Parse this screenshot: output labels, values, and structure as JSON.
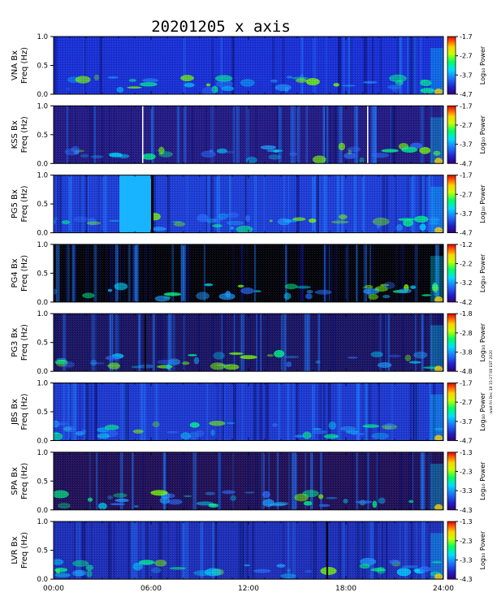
{
  "title": "20201205 x axis",
  "timestamp": "wait Fri Dec 18 15:27:08 EST 2020",
  "chart_data": {
    "type": "heatmap",
    "title": "20201205 x axis",
    "x_ticks": [
      "00:00",
      "06:00",
      "12:00",
      "18:00",
      "24:00"
    ],
    "x_range_hours": [
      0,
      24
    ],
    "y_label": "Freq (Hz)",
    "y_range": [
      0.0,
      1.0
    ],
    "y_ticks": [
      "0.0",
      "0.5",
      "1.0"
    ],
    "colorbar_label": "Log₁₀ Power",
    "colormap": [
      "#000000",
      "#30007a",
      "#1f1fd8",
      "#1e78ff",
      "#00dcff",
      "#00ff64",
      "#c8ff00",
      "#ffd200",
      "#ff5a00",
      "#dc0000"
    ],
    "panels": [
      {
        "station": "VNA Bx",
        "ylabel": "VNA Bx",
        "cb_ticks": [
          "-1.7",
          "-2.7",
          "-3.7",
          "-4.7"
        ],
        "bg": "#1a2fd6",
        "vband_count": 30
      },
      {
        "station": "KSS Bx",
        "ylabel": "KSS Bx",
        "cb_ticks": [
          "-1.7",
          "-2.7",
          "-3.7",
          "-4.7"
        ],
        "bg": "#241a82",
        "white_lines_h": [
          5.45,
          19.3
        ]
      },
      {
        "station": "PG5 Bx",
        "ylabel": "PG5 Bx",
        "cb_ticks": [
          "-1.7",
          "-2.7",
          "-3.7",
          "-4.7"
        ],
        "bg": "#1f3dd6",
        "gap_h": [
          4.05,
          6.0
        ]
      },
      {
        "station": "PG4 Bx",
        "ylabel": "PG4 Bx",
        "cb_ticks": [
          "-1.2",
          "-2.2",
          "-3.2",
          "-4.2"
        ],
        "bg": "#050208"
      },
      {
        "station": "PG3 Bx",
        "ylabel": "PG3 Bx",
        "cb_ticks": [
          "-1.8",
          "-2.8",
          "-3.8",
          "-4.8"
        ],
        "bg": "#1c1462",
        "dark_line_h": [
          5.6
        ]
      },
      {
        "station": "JBS Bx",
        "ylabel": "JBS Bx",
        "cb_ticks": [
          "-1.7",
          "-2.7",
          "-3.7",
          "-4.7"
        ],
        "bg": "#1f38d0"
      },
      {
        "station": "SPA Bx",
        "ylabel": "SPA Bx",
        "cb_ticks": [
          "-1.3",
          "-2.3",
          "-3.3",
          "-4.3"
        ],
        "bg": "#231057"
      },
      {
        "station": "LVR Bx",
        "ylabel": "LVR Bx",
        "cb_ticks": [
          "-1.3",
          "-2.3",
          "-3.3",
          "-4.3"
        ],
        "bg": "#1f2eb8",
        "dark_line_h": [
          16.8
        ]
      }
    ]
  }
}
